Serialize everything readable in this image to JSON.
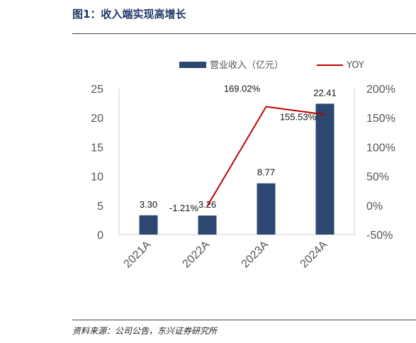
{
  "figure": {
    "title": "图1：收入端实现高增长",
    "source": "资料来源：公司公告，东兴证券研究所"
  },
  "colors": {
    "bar": "#2c4770",
    "line": "#c00000",
    "title": "#1f3a68"
  },
  "chart_data": {
    "type": "bar",
    "categories": [
      "2021A",
      "2022A",
      "2023A",
      "2024A"
    ],
    "series": [
      {
        "name": "营业收入（亿元）",
        "type": "bar",
        "axis": "left",
        "values": [
          3.3,
          3.26,
          8.77,
          22.41
        ],
        "labels": [
          "3.30",
          "3.26",
          "8.77",
          "22.41"
        ]
      },
      {
        "name": "YOY",
        "type": "line",
        "axis": "right",
        "values": [
          null,
          -1.21,
          169.02,
          155.53
        ],
        "labels": [
          "",
          "-1.21%",
          "169.02%",
          "155.53%"
        ]
      }
    ],
    "ylim_left": [
      0,
      25
    ],
    "yticks_left": [
      "0",
      "5",
      "10",
      "15",
      "20",
      "25"
    ],
    "ylim_right": [
      -50,
      200
    ],
    "yticks_right": [
      "-50%",
      "0%",
      "50%",
      "100%",
      "150%",
      "200%"
    ],
    "legend_position": "top",
    "grid": false
  }
}
